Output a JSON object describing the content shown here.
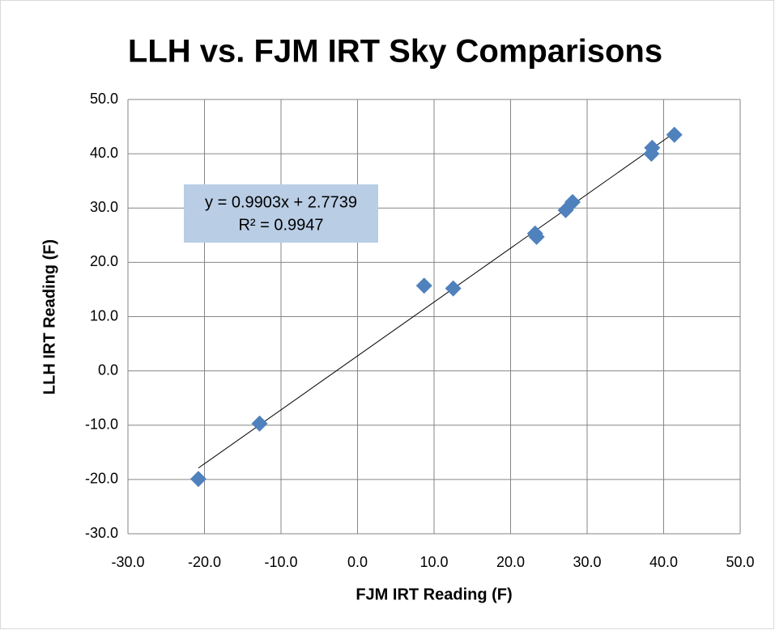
{
  "chart_data": {
    "type": "scatter",
    "title": "LLH vs. FJM IRT Sky Comparisons",
    "x_label": "FJM IRT Reading (F)",
    "y_label": "LLH IRT Reading (F)",
    "annotation": [
      "y = 0.9903x + 2.7739",
      "R² = 0.9947"
    ],
    "series": [
      {
        "color": "#4f81bd",
        "x": [
          -20.8,
          -12.8,
          8.7,
          12.5,
          23.2,
          23.4,
          27.2,
          28.1,
          38.5,
          38.4,
          41.4
        ],
        "values": [
          -19.9,
          -9.7,
          15.7,
          15.2,
          25.3,
          24.7,
          29.6,
          31.1,
          41.1,
          40.0,
          43.5
        ]
      }
    ],
    "xlim": [
      -30,
      50
    ],
    "ylim": [
      -30,
      50
    ],
    "xticks": [
      {
        "value": -30,
        "label": "-30.0"
      },
      {
        "value": -20,
        "label": "-20.0"
      },
      {
        "value": -10,
        "label": "-10.0"
      },
      {
        "value": 0,
        "label": "0.0"
      },
      {
        "value": 10,
        "label": "10.0"
      },
      {
        "value": 20,
        "label": "20.0"
      },
      {
        "value": 30,
        "label": "30.0"
      },
      {
        "value": 40,
        "label": "40.0"
      },
      {
        "value": 50,
        "label": "50.0"
      }
    ],
    "yticks": [
      {
        "value": -30,
        "label": "-30.0"
      },
      {
        "value": -20,
        "label": "-20.0"
      },
      {
        "value": -10,
        "label": "-10.0"
      },
      {
        "value": 0,
        "label": "0.0"
      },
      {
        "value": 10,
        "label": "10.0"
      },
      {
        "value": 20,
        "label": "20.0"
      },
      {
        "value": 30,
        "label": "30.0"
      },
      {
        "value": 40,
        "label": "40.0"
      },
      {
        "value": 50,
        "label": "50.0"
      }
    ],
    "grid": true
  }
}
